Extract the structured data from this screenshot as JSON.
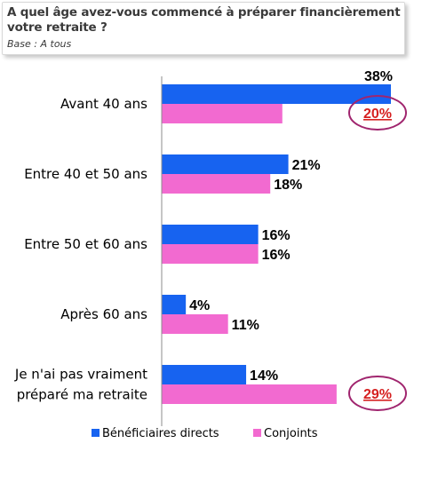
{
  "header": {
    "title": "A quel âge avez-vous commencé à préparer financièrement votre retraite ?",
    "base": "Base : A tous"
  },
  "colors": {
    "series1": "#1763f0",
    "series2": "#f26ad0",
    "highlight_ring": "#a0256e",
    "highlight_text": "#d62020"
  },
  "chart_data": {
    "type": "bar",
    "orientation": "horizontal",
    "categories": [
      [
        "Avant 40 ans"
      ],
      [
        "Entre 40 et 50 ans"
      ],
      [
        "Entre 50 et 60 ans"
      ],
      [
        "Après 60 ans"
      ],
      [
        "Je n'ai pas vraiment",
        "préparé ma retraite"
      ]
    ],
    "series": [
      {
        "name": "Bénéficiaires directs",
        "values": [
          38,
          21,
          16,
          4,
          14
        ],
        "labels": [
          "38%",
          "21%",
          "16%",
          "4%",
          "14%"
        ]
      },
      {
        "name": "Conjoints",
        "values": [
          20,
          18,
          16,
          11,
          29
        ],
        "labels": [
          "20%",
          "18%",
          "16%",
          "11%",
          "29%"
        ]
      }
    ],
    "highlighted": [
      {
        "series": 1,
        "index": 0
      },
      {
        "series": 1,
        "index": 4
      }
    ],
    "xlim": [
      0,
      38
    ],
    "grid": false,
    "legend": "bottom"
  }
}
